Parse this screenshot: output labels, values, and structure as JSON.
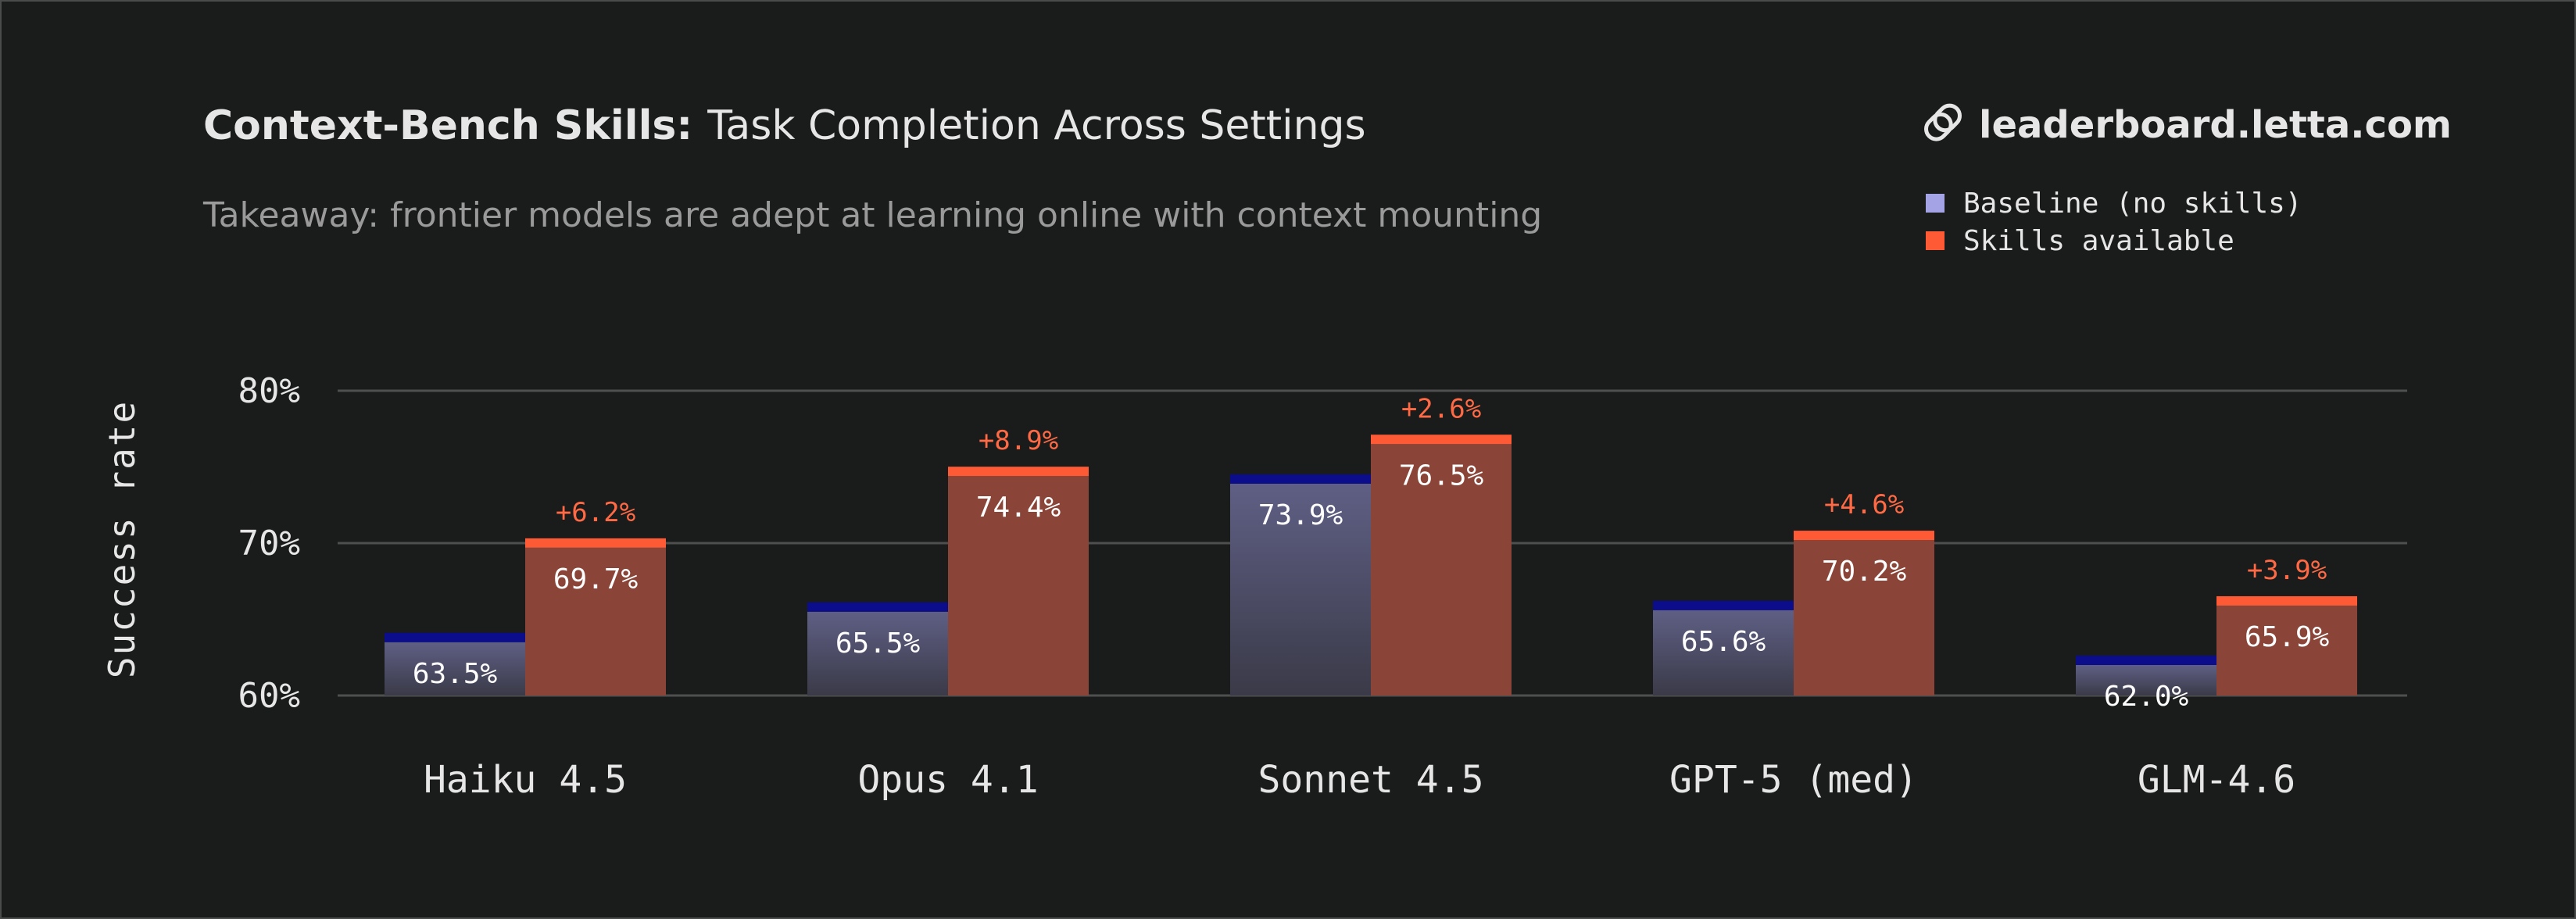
{
  "header": {
    "title_bold": "Context-Bench Skills:",
    "title_rest": "Task Completion Across Settings",
    "subtitle": "Takeaway: frontier models are adept at learning online with context mounting",
    "site": "leaderboard.letta.com",
    "site_icon": "link-icon"
  },
  "colors": {
    "background": "#1a1b1b",
    "baseline_cap": "#0b0d8a",
    "baseline_legend": "#a3a3e6",
    "baseline_top": "#5f5f85",
    "baseline_bottom": "#3a3a48",
    "skills_cap": "#ff5a36",
    "skills_body": "#8a4538",
    "grid": "#4f4f4f"
  },
  "chart_data": {
    "type": "bar",
    "title": "Context-Bench Skills: Task Completion Across Settings",
    "subtitle": "Takeaway: frontier models are adept at learning online with context mounting",
    "ylabel": "Success rate",
    "xlabel": "",
    "ylim": [
      60,
      80
    ],
    "yticks": [
      60,
      70,
      80
    ],
    "ytick_labels": [
      "60%",
      "70%",
      "80%"
    ],
    "grid": true,
    "legend_position": "top-right",
    "categories": [
      "Haiku 4.5",
      "Opus 4.1",
      "Sonnet 4.5",
      "GPT-5 (med)",
      "GLM-4.6"
    ],
    "series": [
      {
        "name": "Baseline (no skills)",
        "values": [
          63.5,
          65.5,
          73.9,
          65.6,
          62.0
        ],
        "labels": [
          "63.5%",
          "65.5%",
          "73.9%",
          "65.6%",
          "62.0%"
        ]
      },
      {
        "name": "Skills available",
        "values": [
          69.7,
          74.4,
          76.5,
          70.2,
          65.9
        ],
        "labels": [
          "69.7%",
          "74.4%",
          "76.5%",
          "70.2%",
          "65.9%"
        ]
      }
    ],
    "annotations": [
      "+6.2%",
      "+8.9%",
      "+2.6%",
      "+4.6%",
      "+3.9%"
    ]
  }
}
